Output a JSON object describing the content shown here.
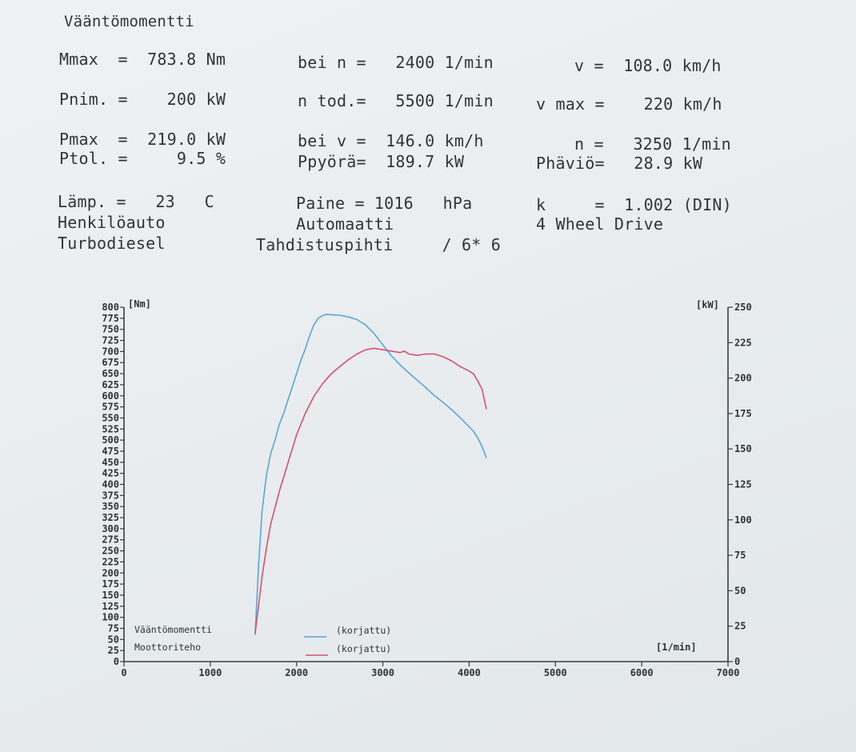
{
  "header": {
    "title": "Vääntömomentti",
    "rows": [
      [
        "Mmax  =  783.8 Nm",
        "bei n =   2400 1/min",
        "v =  108.0 km/h"
      ],
      [
        "Pnim. =    200 kW",
        "n tod.=   5500 1/min",
        "v max =    220 km/h"
      ],
      [
        "Pmax  =  219.0 kW",
        "bei v =  146.0 km/h",
        "n =   3250 1/min"
      ],
      [
        "Ptol. =     9.5 %",
        "Ppyörä=  189.7 kW",
        "Phäviö=   28.9 kW"
      ],
      [
        "Lämp. =   23   C",
        "Paine = 1016   hPa",
        "k     =  1.002 (DIN)"
      ],
      [
        "Henkilöauto",
        "Automaatti",
        "4 Wheel Drive"
      ],
      [
        "Turbodiesel",
        "Tahdistuspihti     / 6* 6",
        ""
      ]
    ]
  },
  "colors": {
    "torque": "#5aa6d6",
    "power": "#d9506f",
    "axis": "#3a3d42"
  },
  "chart_data": {
    "type": "line",
    "title": "",
    "xlabel": "[1/min]",
    "ylabel_left": "[Nm]",
    "ylabel_right": "[kW]",
    "xlim": [
      0,
      7000
    ],
    "ylim_left": [
      0,
      800
    ],
    "ylim_right": [
      0,
      250
    ],
    "x_ticks": [
      0,
      1000,
      2000,
      3000,
      4000,
      5000,
      6000,
      7000
    ],
    "y_left_ticks": [
      0,
      25,
      50,
      75,
      100,
      125,
      150,
      175,
      200,
      225,
      250,
      275,
      300,
      325,
      350,
      375,
      400,
      425,
      450,
      475,
      500,
      525,
      550,
      575,
      600,
      625,
      650,
      675,
      700,
      725,
      750,
      775,
      800
    ],
    "y_right_ticks": [
      0,
      25,
      50,
      75,
      100,
      125,
      150,
      175,
      200,
      225,
      250
    ],
    "legend": [
      {
        "label": "Vääntömomentti",
        "note": "(korjattu)"
      },
      {
        "label": "Moottoriteho",
        "note": "(korjattu)"
      }
    ],
    "series": [
      {
        "axis": "left",
        "x": [
          1520,
          1560,
          1600,
          1650,
          1700,
          1750,
          1800,
          1850,
          1900,
          1950,
          2000,
          2050,
          2100,
          2150,
          2200,
          2250,
          2300,
          2350,
          2400,
          2500,
          2600,
          2700,
          2800,
          2900,
          3000,
          3100,
          3200,
          3300,
          3400,
          3500,
          3600,
          3700,
          3800,
          3900,
          4000,
          4050,
          4100,
          4150,
          4200
        ],
        "y": [
          60,
          220,
          340,
          420,
          470,
          500,
          535,
          560,
          590,
          620,
          650,
          680,
          705,
          735,
          760,
          775,
          781,
          784,
          783,
          782,
          778,
          772,
          760,
          740,
          715,
          690,
          670,
          652,
          635,
          618,
          600,
          585,
          568,
          550,
          530,
          520,
          505,
          485,
          460
        ]
      },
      {
        "axis": "right",
        "x": [
          1520,
          1560,
          1600,
          1650,
          1700,
          1800,
          1900,
          2000,
          2100,
          2200,
          2300,
          2400,
          2500,
          2600,
          2700,
          2800,
          2900,
          3000,
          3100,
          3200,
          3250,
          3300,
          3400,
          3500,
          3600,
          3700,
          3800,
          3900,
          4000,
          4050,
          4100,
          4150,
          4200
        ],
        "y": [
          20,
          40,
          60,
          80,
          97,
          120,
          140,
          160,
          175,
          187,
          196,
          203,
          208,
          213,
          217,
          220,
          221,
          220,
          219,
          218,
          219,
          217,
          216,
          217,
          217,
          215,
          212,
          208,
          205,
          203,
          198,
          192,
          178
        ]
      }
    ]
  }
}
